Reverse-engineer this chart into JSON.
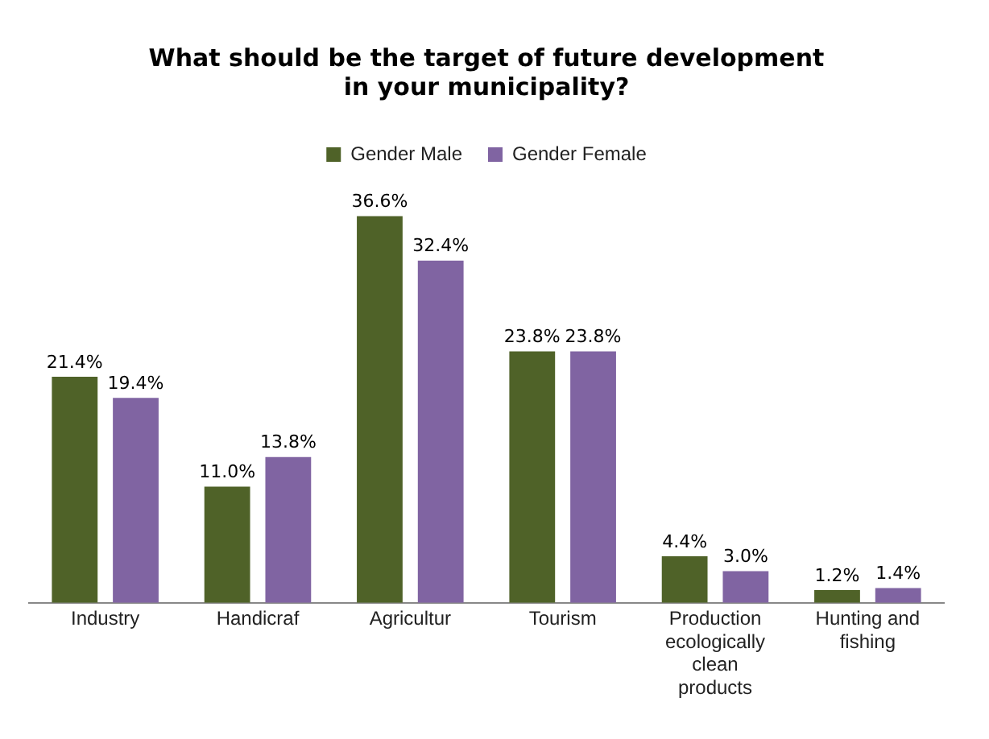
{
  "chart_data": {
    "type": "bar",
    "title": "What should be the target of future development\nin your municipality?",
    "categories": [
      "Industry",
      "Handicraf",
      "Agricultur",
      "Tourism",
      "Production ecologically clean products",
      "Hunting and fishing"
    ],
    "series": [
      {
        "name": "Gender Male",
        "color": "#4f6228",
        "values": [
          21.4,
          11.0,
          36.6,
          23.8,
          4.4,
          1.2
        ],
        "value_labels": [
          "21.4%",
          "11.0%",
          "36.6%",
          "23.8%",
          "4.4%",
          "1.2%"
        ]
      },
      {
        "name": "Gender Female",
        "color": "#8064a2",
        "values": [
          19.4,
          13.8,
          32.4,
          23.8,
          3.0,
          1.4
        ],
        "value_labels": [
          "19.4%",
          "13.8%",
          "32.4%",
          "23.8%",
          "3.0%",
          "1.4%"
        ]
      }
    ],
    "legend": "top",
    "tick_labels": "x",
    "grid": false
  }
}
